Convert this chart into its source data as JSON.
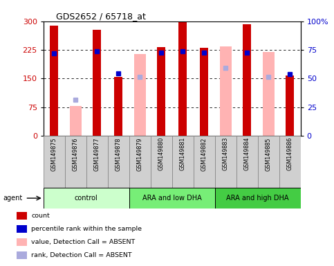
{
  "title": "GDS2652 / 65718_at",
  "samples": [
    "GSM149875",
    "GSM149876",
    "GSM149877",
    "GSM149878",
    "GSM149879",
    "GSM149880",
    "GSM149881",
    "GSM149882",
    "GSM149883",
    "GSM149884",
    "GSM149885",
    "GSM149886"
  ],
  "red_values": [
    289,
    0,
    277,
    155,
    0,
    232,
    297,
    231,
    0,
    293,
    0,
    158
  ],
  "pink_values": [
    0,
    78,
    0,
    0,
    215,
    0,
    0,
    0,
    234,
    0,
    219,
    0
  ],
  "blue_rank_left": [
    216,
    0,
    222,
    163,
    0,
    217,
    221,
    218,
    0,
    217,
    0,
    161
  ],
  "light_rank_left": [
    0,
    95,
    0,
    0,
    155,
    0,
    0,
    0,
    178,
    0,
    155,
    0
  ],
  "absent": [
    false,
    true,
    false,
    false,
    true,
    false,
    false,
    false,
    true,
    false,
    true,
    false
  ],
  "ylim_left": [
    0,
    300
  ],
  "ylim_right": [
    0,
    100
  ],
  "yticks_left": [
    0,
    75,
    150,
    225,
    300
  ],
  "yticks_right": [
    0,
    25,
    50,
    75,
    100
  ],
  "grid_lines": [
    75,
    150,
    225
  ],
  "red_color": "#cc0000",
  "pink_color": "#ffb3b3",
  "blue_color": "#0000cc",
  "lightpurple_color": "#aaaadd",
  "group_labels": [
    "control",
    "ARA and low DHA",
    "ARA and high DHA"
  ],
  "group_ranges": [
    [
      0,
      3
    ],
    [
      4,
      7
    ],
    [
      8,
      11
    ]
  ],
  "group_colors": [
    "#ccffcc",
    "#77ee77",
    "#44cc44"
  ],
  "legend_labels": [
    "count",
    "percentile rank within the sample",
    "value, Detection Call = ABSENT",
    "rank, Detection Call = ABSENT"
  ],
  "legend_colors": [
    "#cc0000",
    "#0000cc",
    "#ffb3b3",
    "#aaaadd"
  ],
  "cell_color": "#d0d0d0",
  "cell_edge_color": "#888888"
}
